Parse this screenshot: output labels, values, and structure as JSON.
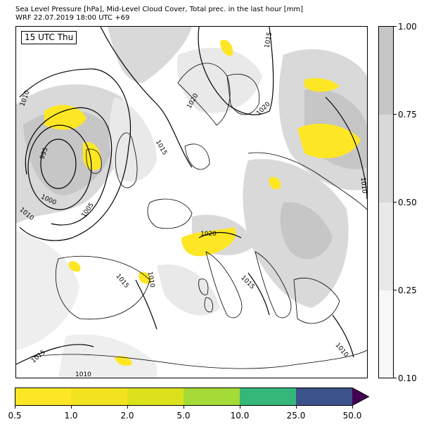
{
  "title": {
    "line1": "Sea Level Pressure [hPa], Mid-Level Cloud Cover, Total prec. in the last hour [mm]",
    "line2": "WRF 22.07.2019 18:00 UTC +69"
  },
  "time_label": "15 UTC Thu",
  "pressure_contours": {
    "labels": [
      "995",
      "1000",
      "1005",
      "1010",
      "1010",
      "1015",
      "1020",
      "1020",
      "1020",
      "1010",
      "1015",
      "1010",
      "1015",
      "1015",
      "1010",
      "1010",
      "1015"
    ]
  },
  "cloud_cover_colorbar": {
    "ticks": [
      "0.10",
      "0.25",
      "0.50",
      "0.75",
      "1.00"
    ],
    "colors": [
      "#f7f7f7",
      "#e9e9e9",
      "#d9d9d9",
      "#c6c6c6"
    ]
  },
  "precip_colorbar": {
    "ticks": [
      "0.5",
      "1.0",
      "2.0",
      "5.0",
      "10.0",
      "25.0",
      "50.0"
    ],
    "colors": [
      "#fde725",
      "#f2e31e",
      "#dbe21c",
      "#a5db36",
      "#35b779",
      "#3b528b",
      "#440154"
    ]
  }
}
